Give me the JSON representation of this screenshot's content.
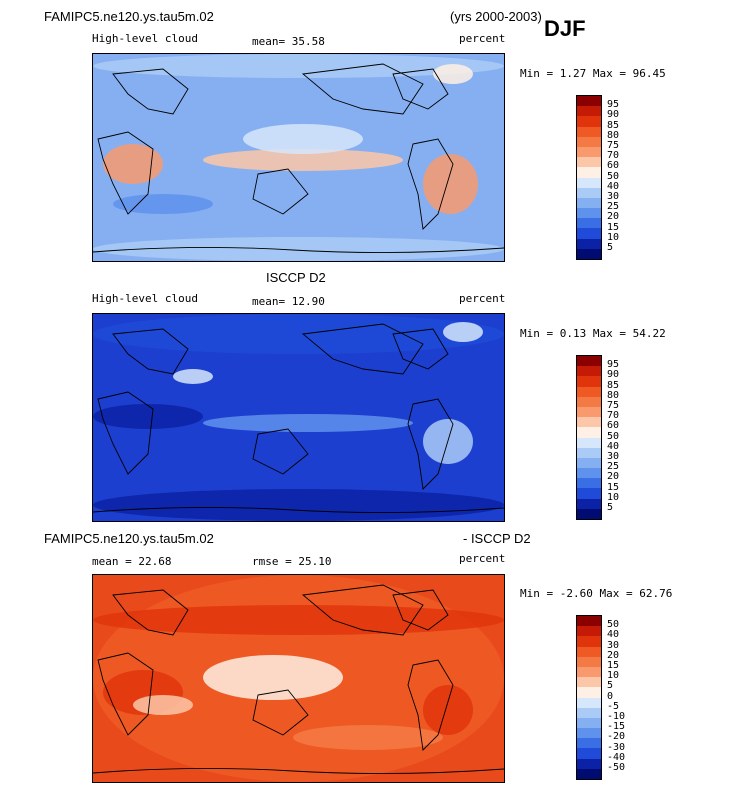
{
  "header": {
    "model": "FAMIPC5.ne120.ys.tau5m.02",
    "years": "(yrs 2000-2003)",
    "season": "DJF"
  },
  "panels": [
    {
      "field": "High-level cloud",
      "stat": "mean=   35.58",
      "units": "percent",
      "minmax": "Min =   1.27 Max =  96.45",
      "levels": [
        "95",
        "90",
        "85",
        "80",
        "75",
        "70",
        "60",
        "50",
        "40",
        "30",
        "25",
        "20",
        "15",
        "10",
        "5"
      ],
      "colors": [
        "#8b0000",
        "#c41a06",
        "#e0350c",
        "#ef5a24",
        "#f47a45",
        "#f89a6e",
        "#fbc7a8",
        "#fef0e4",
        "#d6e6fb",
        "#aacbf6",
        "#84b0f2",
        "#5f92ed",
        "#3a6ee5",
        "#1f4bd8",
        "#0b22a6",
        "#000c72"
      ],
      "lowcolor": "#86aff2"
    },
    {
      "title": "ISCCP D2",
      "field": "High-level cloud",
      "stat": "mean=   12.90",
      "units": "percent",
      "minmax": "Min =   0.13 Max =  54.22",
      "levels": [
        "95",
        "90",
        "85",
        "80",
        "75",
        "70",
        "60",
        "50",
        "40",
        "30",
        "25",
        "20",
        "15",
        "10",
        "5"
      ],
      "colors": [
        "#8b0000",
        "#c41a06",
        "#e0350c",
        "#ef5a24",
        "#f47a45",
        "#f89a6e",
        "#fbc7a8",
        "#fef0e4",
        "#d6e6fb",
        "#aacbf6",
        "#84b0f2",
        "#5f92ed",
        "#3a6ee5",
        "#1f4bd8",
        "#0b22a6",
        "#000c72"
      ],
      "lowcolor": "#1c3fcf"
    },
    {
      "title_left": "FAMIPC5.ne120.ys.tau5m.02",
      "title_right": "- ISCCP D2",
      "stat": "mean =   22.68",
      "rmse": "rmse =   25.10",
      "units": "percent",
      "minmax": "Min =  -2.60 Max =  62.76",
      "levels": [
        "50",
        "40",
        "30",
        "20",
        "15",
        "10",
        "5",
        "0",
        "-5",
        "-10",
        "-15",
        "-20",
        "-30",
        "-40",
        "-50"
      ],
      "colors": [
        "#8b0000",
        "#c41a06",
        "#e0350c",
        "#ef5a24",
        "#f47a45",
        "#f89a6e",
        "#fbc7a8",
        "#fef0e4",
        "#d6e6fb",
        "#aacbf6",
        "#84b0f2",
        "#5f92ed",
        "#3a6ee5",
        "#1f4bd8",
        "#0b22a6",
        "#000c72"
      ],
      "lowcolor": "#e94a1c"
    }
  ]
}
